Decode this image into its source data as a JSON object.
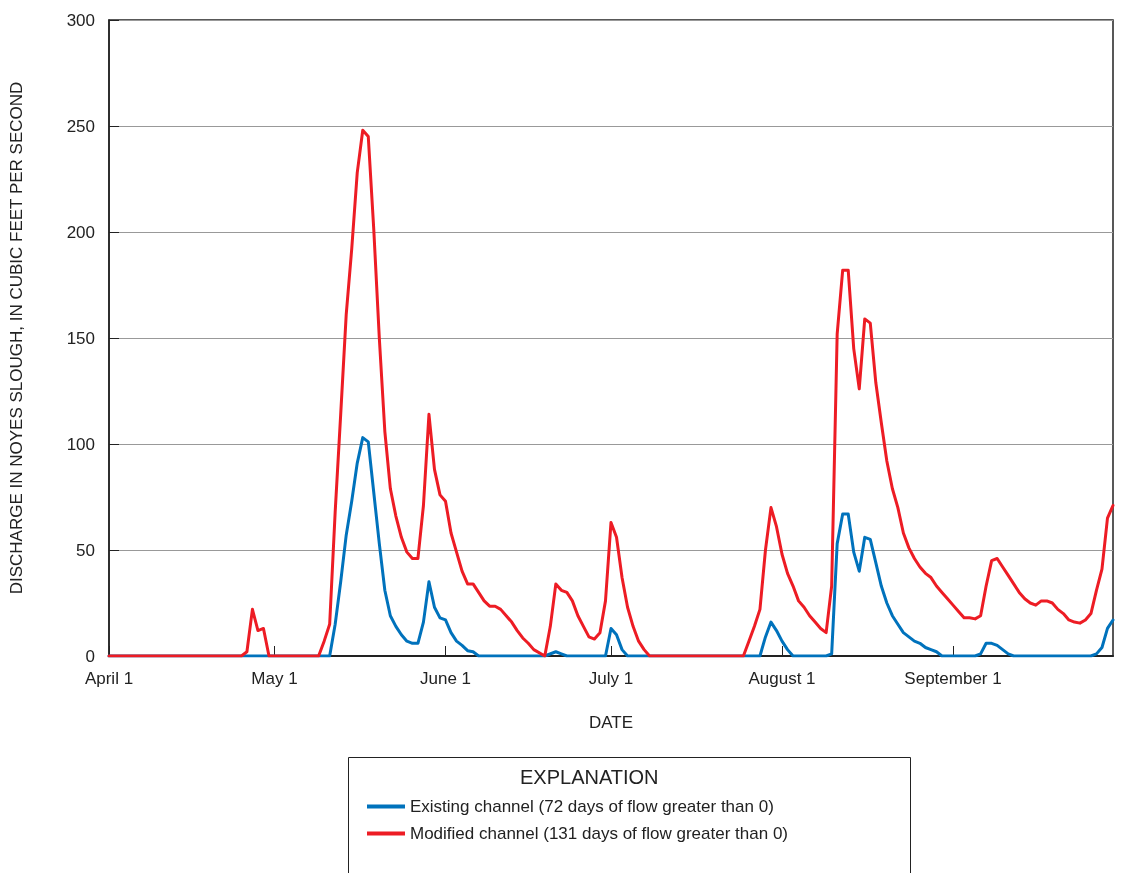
{
  "chart_data": {
    "type": "line",
    "xlabel": "DATE",
    "ylabel": "DISCHARGE IN NOYES SLOUGH, IN CUBIC FEET PER SECOND",
    "legend_title": "EXPLANATION",
    "xlim": [
      "--04-01",
      "--09-30"
    ],
    "xticks": [
      {
        "value": "--04-01",
        "label": "April 1"
      },
      {
        "value": "--05-01",
        "label": "May 1"
      },
      {
        "value": "--06-01",
        "label": "June 1"
      },
      {
        "value": "--07-01",
        "label": "July 1"
      },
      {
        "value": "--08-01",
        "label": "August 1"
      },
      {
        "value": "--09-01",
        "label": "September 1"
      }
    ],
    "ylim": [
      0,
      300
    ],
    "yticks": [
      0,
      50,
      100,
      150,
      200,
      250,
      300
    ],
    "grid": "y",
    "legend": "bottom",
    "marker": "none",
    "line_style": "solid",
    "series": [
      {
        "name": "Existing channel (72 days of flow greater than 0)",
        "color": "#0072bc",
        "x": [
          "--04-01",
          "--05-11",
          "--05-12",
          "--05-13",
          "--05-14",
          "--05-15",
          "--05-16",
          "--05-17",
          "--05-18",
          "--05-19",
          "--05-20",
          "--05-21",
          "--05-22",
          "--05-23",
          "--05-24",
          "--05-25",
          "--05-26",
          "--05-27",
          "--05-28",
          "--05-29",
          "--05-30",
          "--05-31",
          "--06-01",
          "--06-02",
          "--06-03",
          "--06-04",
          "--06-05",
          "--06-06",
          "--06-07",
          "--06-19",
          "--06-21",
          "--06-22",
          "--06-23",
          "--06-30",
          "--07-01",
          "--07-02",
          "--07-03",
          "--07-04",
          "--07-28",
          "--07-29",
          "--07-30",
          "--07-31",
          "--08-01",
          "--08-02",
          "--08-03",
          "--08-09",
          "--08-10",
          "--08-11",
          "--08-12",
          "--08-13",
          "--08-14",
          "--08-15",
          "--08-16",
          "--08-17",
          "--08-18",
          "--08-19",
          "--08-20",
          "--08-21",
          "--08-22",
          "--08-23",
          "--08-24",
          "--08-25",
          "--08-26",
          "--08-27",
          "--08-28",
          "--08-29",
          "--08-30",
          "--09-05",
          "--09-06",
          "--09-07",
          "--09-08",
          "--09-09",
          "--09-10",
          "--09-11",
          "--09-12",
          "--09-26",
          "--09-27",
          "--09-28",
          "--09-29",
          "--09-30"
        ],
        "values": [
          0,
          0,
          15,
          35,
          57,
          73,
          91,
          103,
          101,
          77,
          53,
          31,
          19,
          14,
          10,
          7,
          6,
          6,
          16,
          35,
          23,
          18,
          17,
          11,
          7,
          5,
          2.5,
          2,
          0,
          0,
          2,
          1,
          0,
          0,
          13,
          10,
          3,
          0,
          0,
          9,
          16,
          12,
          7,
          3,
          0,
          0,
          1,
          53,
          67,
          67,
          49,
          40,
          56,
          55,
          44,
          33,
          25,
          19,
          15,
          11,
          9,
          7,
          6,
          4,
          3,
          2,
          0,
          0,
          1,
          6,
          6,
          5,
          3,
          1,
          0,
          0,
          1,
          4,
          13,
          17
        ]
      },
      {
        "name": "Modified channel (131 days of flow greater than 0)",
        "color": "#ed1c24",
        "x": [
          "--04-01",
          "--04-25",
          "--04-26",
          "--04-27",
          "--04-28",
          "--04-29",
          "--04-30",
          "--05-09",
          "--05-10",
          "--05-11",
          "--05-12",
          "--05-13",
          "--05-14",
          "--05-15",
          "--05-16",
          "--05-17",
          "--05-18",
          "--05-19",
          "--05-20",
          "--05-21",
          "--05-22",
          "--05-23",
          "--05-24",
          "--05-25",
          "--05-26",
          "--05-27",
          "--05-28",
          "--05-29",
          "--05-30",
          "--05-31",
          "--06-01",
          "--06-02",
          "--06-03",
          "--06-04",
          "--06-05",
          "--06-06",
          "--06-07",
          "--06-08",
          "--06-09",
          "--06-10",
          "--06-11",
          "--06-12",
          "--06-13",
          "--06-14",
          "--06-15",
          "--06-16",
          "--06-17",
          "--06-19",
          "--06-20",
          "--06-21",
          "--06-22",
          "--06-23",
          "--06-24",
          "--06-25",
          "--06-26",
          "--06-27",
          "--06-28",
          "--06-29",
          "--06-30",
          "--07-01",
          "--07-02",
          "--07-03",
          "--07-04",
          "--07-05",
          "--07-06",
          "--07-07",
          "--07-08",
          "--07-25",
          "--07-26",
          "--07-27",
          "--07-28",
          "--07-29",
          "--07-30",
          "--07-31",
          "--08-01",
          "--08-02",
          "--08-03",
          "--08-04",
          "--08-05",
          "--08-06",
          "--08-07",
          "--08-08",
          "--08-09",
          "--08-10",
          "--08-11",
          "--08-12",
          "--08-13",
          "--08-14",
          "--08-15",
          "--08-16",
          "--08-17",
          "--08-18",
          "--08-19",
          "--08-20",
          "--08-21",
          "--08-22",
          "--08-23",
          "--08-24",
          "--08-25",
          "--08-26",
          "--08-27",
          "--08-28",
          "--08-29",
          "--08-30",
          "--08-31",
          "--09-01",
          "--09-02",
          "--09-03",
          "--09-04",
          "--09-05",
          "--09-06",
          "--09-07",
          "--09-08",
          "--09-09",
          "--09-10",
          "--09-11",
          "--09-12",
          "--09-13",
          "--09-14",
          "--09-15",
          "--09-16",
          "--09-17",
          "--09-18",
          "--09-19",
          "--09-20",
          "--09-21",
          "--09-22",
          "--09-23",
          "--09-24",
          "--09-25",
          "--09-26",
          "--09-27",
          "--09-28",
          "--09-29",
          "--09-30"
        ],
        "values": [
          0,
          0,
          2,
          22,
          12,
          13,
          0,
          0,
          7,
          15,
          68,
          114,
          161,
          192,
          228,
          248,
          245,
          201,
          150,
          106,
          79,
          66,
          56,
          49,
          46,
          46,
          71,
          114,
          88,
          76,
          73,
          58,
          49,
          40,
          34,
          34,
          30,
          26,
          23.5,
          23.5,
          22,
          19,
          16,
          12,
          8.5,
          6,
          3,
          0,
          14,
          34,
          31,
          30,
          26,
          19,
          14,
          9,
          8,
          11,
          26,
          63,
          56,
          37,
          23,
          14,
          7,
          3,
          0,
          0,
          7,
          14,
          22,
          50,
          70,
          61,
          48,
          39,
          33,
          26,
          23,
          19,
          16,
          13,
          11,
          33,
          152,
          182,
          182,
          145,
          126,
          159,
          157,
          129,
          110,
          92,
          79,
          70,
          58,
          51,
          46,
          42,
          39,
          37,
          33,
          30,
          27,
          24,
          21,
          18,
          18,
          17.5,
          19,
          33,
          45,
          46,
          42,
          38,
          34,
          30,
          27,
          25,
          24,
          26,
          26,
          25,
          22,
          20,
          17,
          16,
          15.5,
          17,
          20,
          31,
          41,
          65,
          71
        ]
      }
    ]
  }
}
